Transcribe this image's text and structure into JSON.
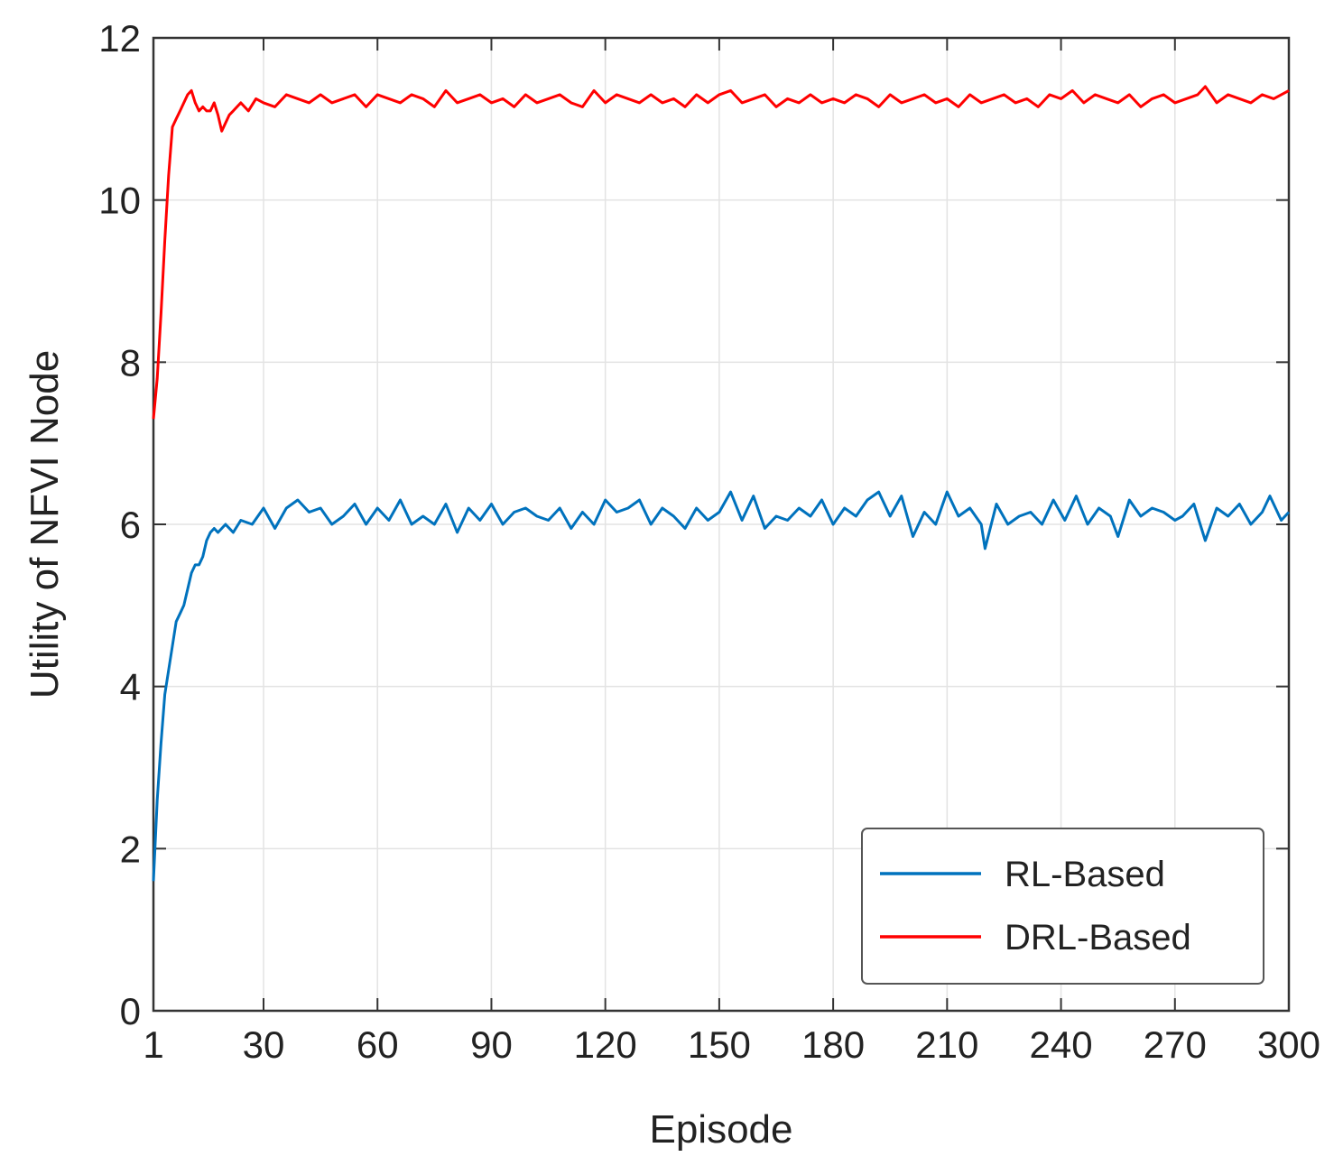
{
  "chart_data": {
    "type": "line",
    "title": "",
    "xlabel": "Episode",
    "ylabel": "Utility of NFVI Node",
    "xlim": [
      1,
      300
    ],
    "ylim": [
      0,
      12
    ],
    "xticks": [
      1,
      30,
      60,
      90,
      120,
      150,
      180,
      210,
      240,
      270,
      300
    ],
    "yticks": [
      0,
      2,
      4,
      6,
      8,
      10,
      12
    ],
    "grid": true,
    "legend": "bottom-right",
    "series": [
      {
        "name": "RL-Based",
        "color": "#0072BD",
        "x": [
          1,
          2,
          3,
          4,
          5,
          6,
          7,
          8,
          9,
          10,
          11,
          12,
          13,
          14,
          15,
          16,
          17,
          18,
          20,
          22,
          24,
          27,
          30,
          33,
          36,
          39,
          42,
          45,
          48,
          51,
          54,
          57,
          60,
          63,
          66,
          69,
          72,
          75,
          78,
          81,
          84,
          87,
          90,
          93,
          96,
          99,
          102,
          105,
          108,
          111,
          114,
          117,
          120,
          123,
          126,
          129,
          132,
          135,
          138,
          141,
          144,
          147,
          150,
          153,
          156,
          159,
          162,
          165,
          168,
          171,
          174,
          177,
          180,
          183,
          186,
          189,
          192,
          195,
          198,
          201,
          204,
          207,
          210,
          213,
          216,
          219,
          220,
          223,
          226,
          229,
          232,
          235,
          238,
          241,
          244,
          247,
          250,
          253,
          255,
          258,
          261,
          264,
          267,
          270,
          272,
          275,
          278,
          281,
          284,
          287,
          290,
          293,
          295,
          298,
          300
        ],
        "y": [
          1.6,
          2.6,
          3.3,
          3.9,
          4.2,
          4.5,
          4.8,
          4.9,
          5.0,
          5.2,
          5.4,
          5.5,
          5.5,
          5.6,
          5.8,
          5.9,
          5.95,
          5.9,
          6.0,
          5.9,
          6.05,
          6.0,
          6.2,
          5.95,
          6.2,
          6.3,
          6.15,
          6.2,
          6.0,
          6.1,
          6.25,
          6.0,
          6.2,
          6.05,
          6.3,
          6.0,
          6.1,
          6.0,
          6.25,
          5.9,
          6.2,
          6.05,
          6.25,
          6.0,
          6.15,
          6.2,
          6.1,
          6.05,
          6.2,
          5.95,
          6.15,
          6.0,
          6.3,
          6.15,
          6.2,
          6.3,
          6.0,
          6.2,
          6.1,
          5.95,
          6.2,
          6.05,
          6.15,
          6.4,
          6.05,
          6.35,
          5.95,
          6.1,
          6.05,
          6.2,
          6.1,
          6.3,
          6.0,
          6.2,
          6.1,
          6.3,
          6.4,
          6.1,
          6.35,
          5.85,
          6.15,
          6.0,
          6.4,
          6.1,
          6.2,
          6.0,
          5.7,
          6.25,
          6.0,
          6.1,
          6.15,
          6.0,
          6.3,
          6.05,
          6.35,
          6.0,
          6.2,
          6.1,
          5.85,
          6.3,
          6.1,
          6.2,
          6.15,
          6.05,
          6.1,
          6.25,
          5.8,
          6.2,
          6.1,
          6.25,
          6.0,
          6.15,
          6.35,
          6.05,
          6.15
        ]
      },
      {
        "name": "DRL-Based",
        "color": "#FF0000",
        "x": [
          1,
          2,
          3,
          4,
          5,
          6,
          7,
          8,
          9,
          10,
          11,
          12,
          13,
          14,
          15,
          16,
          17,
          18,
          19,
          20,
          21,
          22,
          24,
          26,
          28,
          30,
          33,
          36,
          39,
          42,
          45,
          48,
          51,
          54,
          57,
          60,
          63,
          66,
          69,
          72,
          75,
          78,
          81,
          84,
          87,
          90,
          93,
          96,
          99,
          102,
          105,
          108,
          111,
          114,
          117,
          120,
          123,
          126,
          129,
          132,
          135,
          138,
          141,
          144,
          147,
          150,
          153,
          156,
          159,
          162,
          165,
          168,
          171,
          174,
          177,
          180,
          183,
          186,
          189,
          192,
          195,
          198,
          201,
          204,
          207,
          210,
          213,
          216,
          219,
          222,
          225,
          228,
          231,
          234,
          237,
          240,
          243,
          246,
          249,
          252,
          255,
          258,
          261,
          264,
          267,
          270,
          273,
          276,
          278,
          281,
          284,
          287,
          290,
          293,
          296,
          300
        ],
        "y": [
          7.3,
          7.8,
          8.6,
          9.5,
          10.3,
          10.9,
          11.0,
          11.1,
          11.2,
          11.3,
          11.35,
          11.2,
          11.1,
          11.15,
          11.1,
          11.1,
          11.2,
          11.05,
          10.85,
          10.95,
          11.05,
          11.1,
          11.2,
          11.1,
          11.25,
          11.2,
          11.15,
          11.3,
          11.25,
          11.2,
          11.3,
          11.2,
          11.25,
          11.3,
          11.15,
          11.3,
          11.25,
          11.2,
          11.3,
          11.25,
          11.15,
          11.35,
          11.2,
          11.25,
          11.3,
          11.2,
          11.25,
          11.15,
          11.3,
          11.2,
          11.25,
          11.3,
          11.2,
          11.15,
          11.35,
          11.2,
          11.3,
          11.25,
          11.2,
          11.3,
          11.2,
          11.25,
          11.15,
          11.3,
          11.2,
          11.3,
          11.35,
          11.2,
          11.25,
          11.3,
          11.15,
          11.25,
          11.2,
          11.3,
          11.2,
          11.25,
          11.2,
          11.3,
          11.25,
          11.15,
          11.3,
          11.2,
          11.25,
          11.3,
          11.2,
          11.25,
          11.15,
          11.3,
          11.2,
          11.25,
          11.3,
          11.2,
          11.25,
          11.15,
          11.3,
          11.25,
          11.35,
          11.2,
          11.3,
          11.25,
          11.2,
          11.3,
          11.15,
          11.25,
          11.3,
          11.2,
          11.25,
          11.3,
          11.4,
          11.2,
          11.3,
          11.25,
          11.2,
          11.3,
          11.25,
          11.35
        ]
      }
    ]
  }
}
